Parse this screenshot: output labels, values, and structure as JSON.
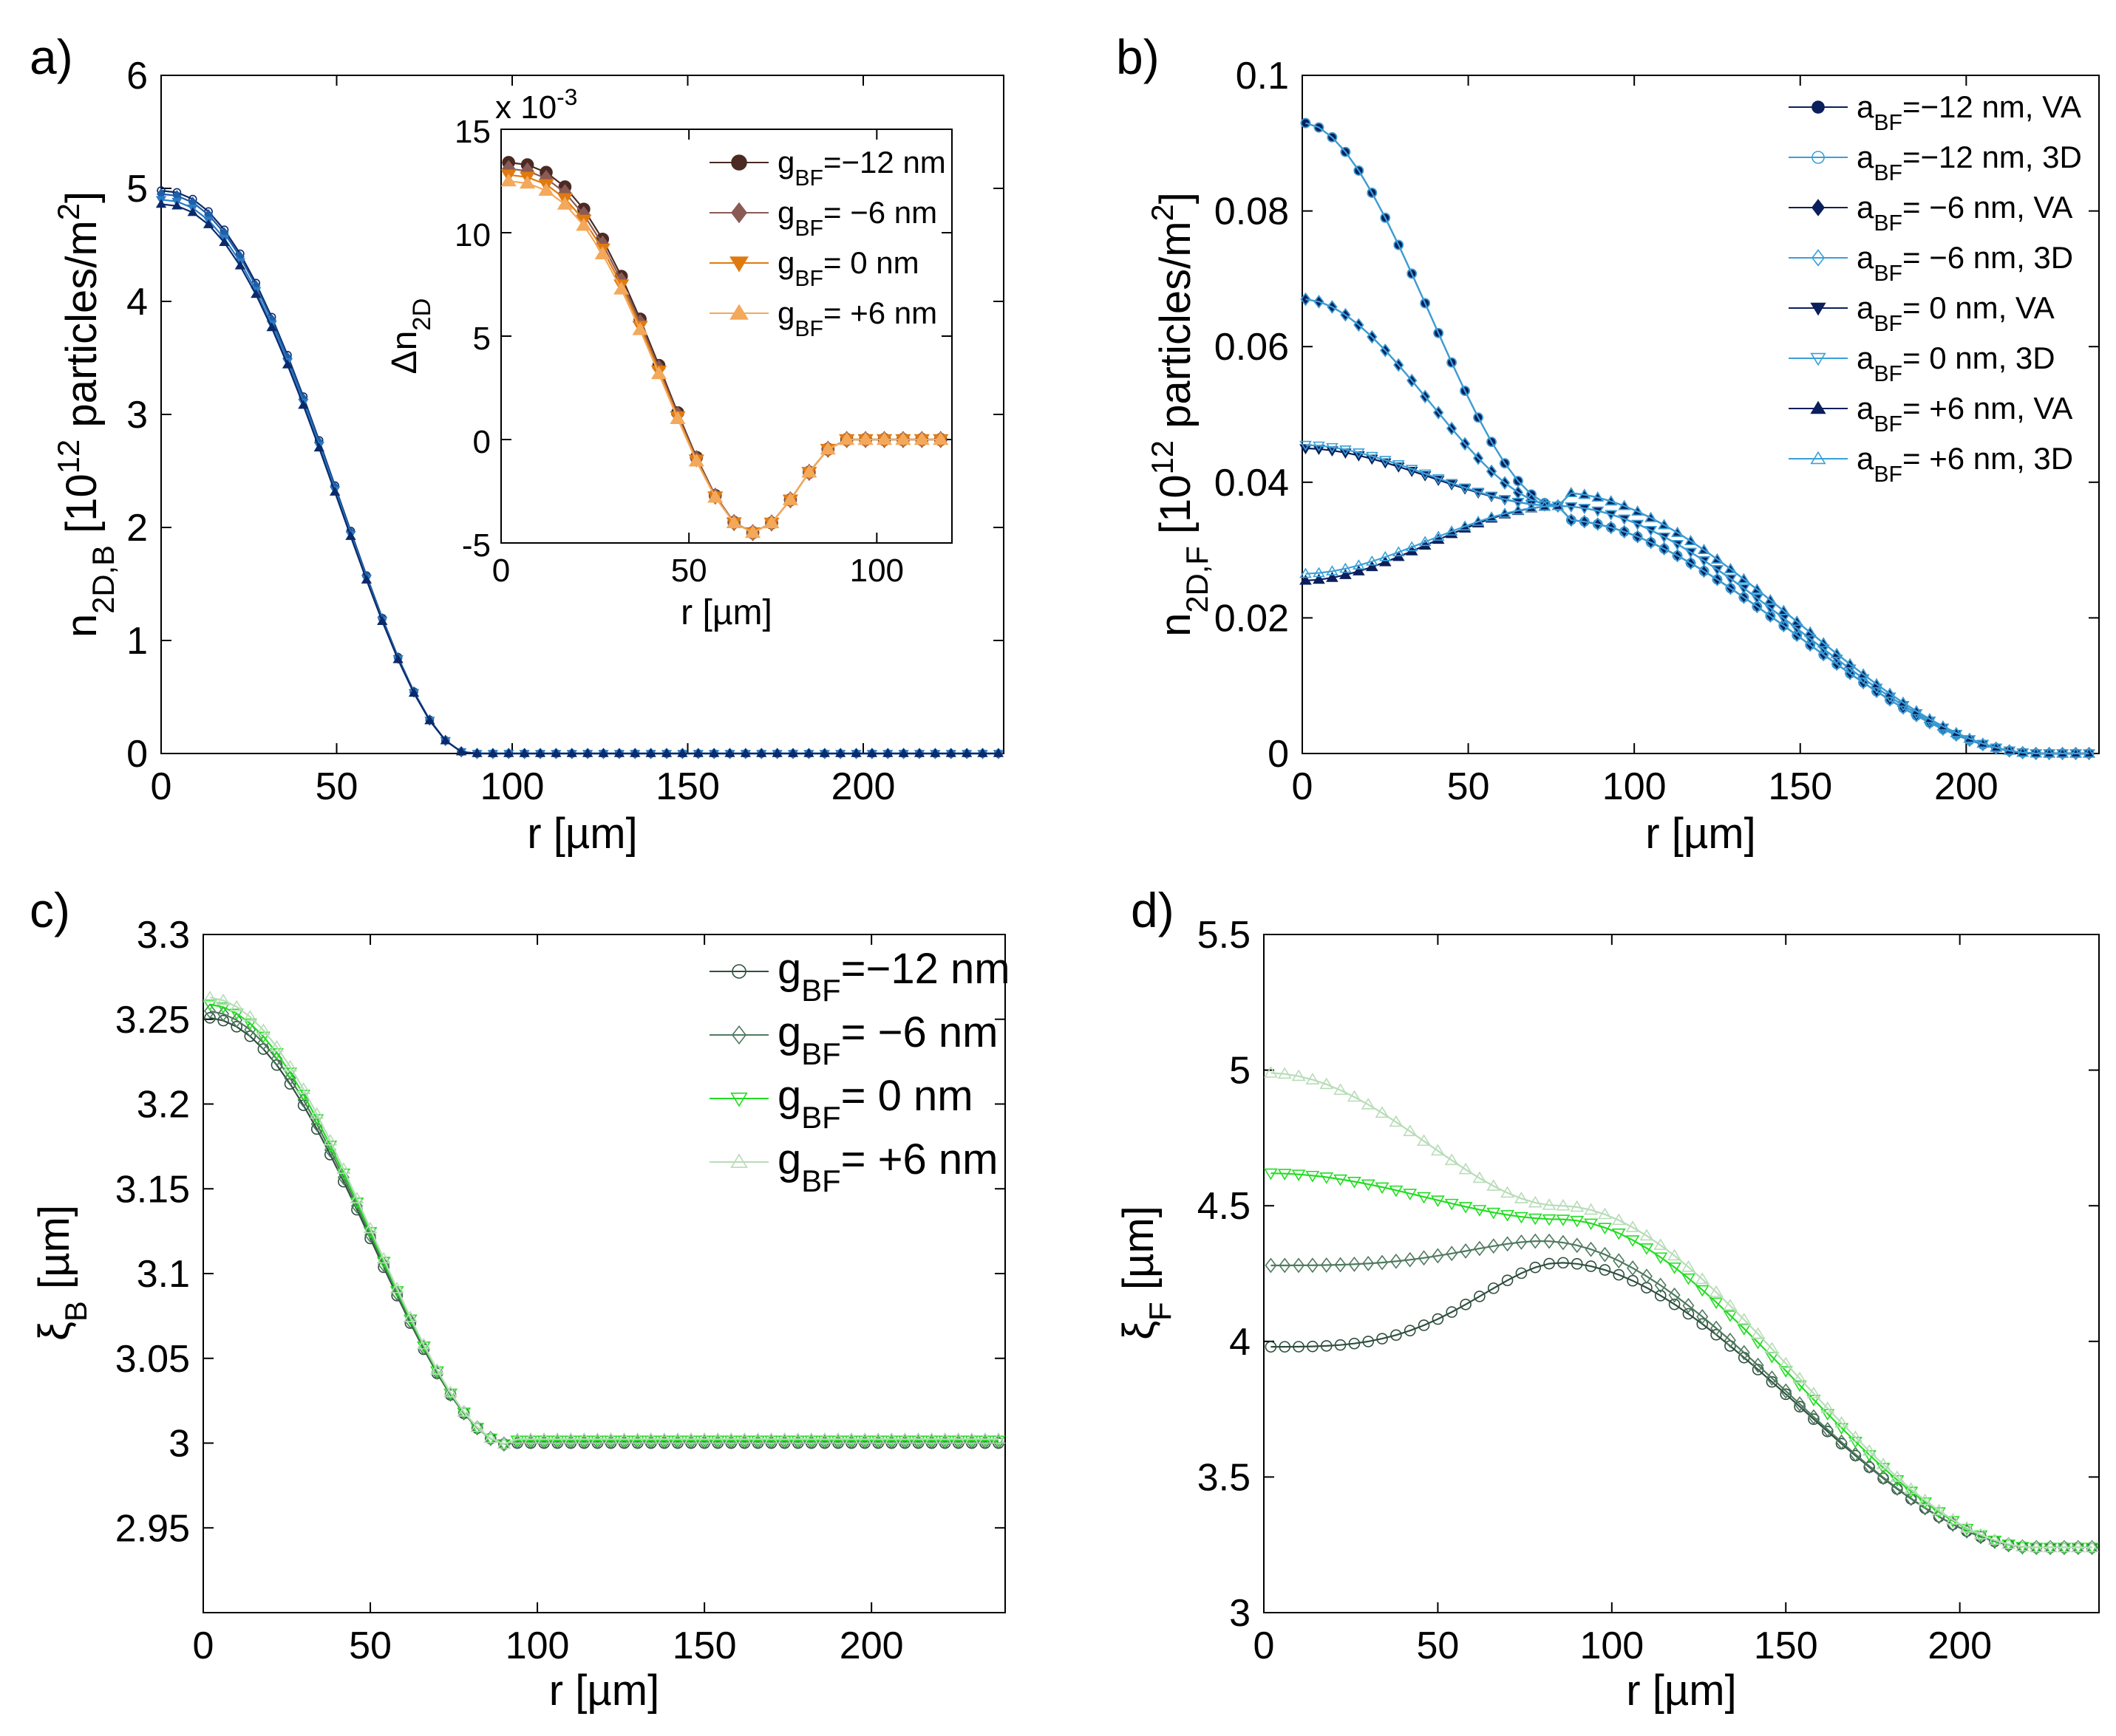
{
  "figure_panels": [
    "a)",
    "b)",
    "c)",
    "d)"
  ],
  "chart_data": [
    {
      "panel": "a)",
      "type": "line",
      "xlabel": "r [µm]",
      "ylabel": "n_{2D,B} [10^{12} particles/m^2]",
      "ylabel_parts": {
        "main": "n",
        "sub": "2D,B",
        "rest1": "[10",
        "sup": "12",
        "rest2": "particles/m",
        "sup2": "2",
        "rest3": "]"
      },
      "xlim": [
        0,
        240
      ],
      "ylim": [
        0,
        6
      ],
      "xticks": [
        0,
        50,
        100,
        150,
        200
      ],
      "yticks": [
        0,
        1,
        2,
        3,
        4,
        5,
        6
      ],
      "curve": {
        "kind": "gauss_step",
        "amp": [
          4.98,
          4.95,
          4.9,
          4.86
        ],
        "cutoff": 88
      },
      "series": [
        {
          "name": "a=-12 nm",
          "color": "#0a2a6b",
          "marker": "circle-open",
          "center": 4.98
        },
        {
          "name": "a=-6 nm",
          "color": "#1f5ea8",
          "marker": "diamond",
          "center": 4.95
        },
        {
          "name": "a=0 nm",
          "color": "#2b7bc4",
          "marker": "tri-down",
          "center": 4.9
        },
        {
          "name": "a=+6 nm",
          "color": "#0a2a6b",
          "marker": "tri-up",
          "center": 4.86
        }
      ],
      "inset": {
        "exponent_label": "x 10",
        "exponent_sup": "-3",
        "ylabel": "Δn",
        "ylabel_sub": "2D",
        "xlabel": "r [µm]",
        "xlim": [
          0,
          120
        ],
        "ylim": [
          -5,
          15
        ],
        "xticks": [
          0,
          50,
          100
        ],
        "yticks": [
          -5,
          0,
          5,
          10,
          15
        ],
        "series": [
          {
            "name_main": "g",
            "name_sub": "BF",
            "name_rest": "=−12 nm",
            "color": "#4a2a22",
            "marker": "circle",
            "center": 13.4
          },
          {
            "name_main": "g",
            "name_sub": "BF",
            "name_rest": "= −6 nm",
            "color": "#8a5a55",
            "marker": "diamond",
            "center": 13.1
          },
          {
            "name_main": "g",
            "name_sub": "BF",
            "name_rest": "=  0 nm",
            "color": "#e07a10",
            "marker": "tri-down",
            "center": 12.8
          },
          {
            "name_main": "g",
            "name_sub": "BF",
            "name_rest": "= +6 nm",
            "color": "#f4a85a",
            "marker": "tri-up",
            "center": 12.5
          }
        ]
      }
    },
    {
      "panel": "b)",
      "type": "line",
      "xlabel": "r [µm]",
      "ylabel_parts": {
        "main": "n",
        "sub": "2D,F",
        "rest1": "[10",
        "sup": "12",
        "rest2": "particles/m",
        "sup2": "2",
        "rest3": "]"
      },
      "xlim": [
        0,
        240
      ],
      "ylim": [
        0,
        0.1
      ],
      "xticks": [
        0,
        50,
        100,
        150,
        200
      ],
      "yticks": [
        0,
        0.02,
        0.04,
        0.06,
        0.08,
        0.1
      ],
      "ytick_labels": [
        "0",
        "0.02",
        "0.04",
        "0.06",
        "0.08",
        "0.1"
      ],
      "series": [
        {
          "name_main": "a",
          "name_sub": "BF",
          "name_rest": "=−12 nm, VA",
          "color": "#0a1f5c",
          "marker": "circle",
          "center": 0.093
        },
        {
          "name_main": "a",
          "name_sub": "BF",
          "name_rest": "=−12 nm, 3D",
          "color": "#3aa0d8",
          "marker": "circle-open",
          "center": 0.093
        },
        {
          "name_main": "a",
          "name_sub": "BF",
          "name_rest": "=  −6 nm, VA",
          "color": "#0a1f5c",
          "marker": "diamond",
          "center": 0.067
        },
        {
          "name_main": "a",
          "name_sub": "BF",
          "name_rest": "=  −6 nm, 3D",
          "color": "#3aa0d8",
          "marker": "diamond-open",
          "center": 0.067
        },
        {
          "name_main": "a",
          "name_sub": "BF",
          "name_rest": "=    0 nm, VA",
          "color": "#0a1f5c",
          "marker": "tri-down",
          "center": 0.045
        },
        {
          "name_main": "a",
          "name_sub": "BF",
          "name_rest": "=    0 nm, 3D",
          "color": "#3aa0d8",
          "marker": "tri-down-open",
          "center": 0.0455
        },
        {
          "name_main": "a",
          "name_sub": "BF",
          "name_rest": "= +6 nm, VA",
          "color": "#0a1f5c",
          "marker": "tri-up",
          "center": 0.0255
        },
        {
          "name_main": "a",
          "name_sub": "BF",
          "name_rest": "= +6 nm, 3D",
          "color": "#3aa0d8",
          "marker": "tri-up-open",
          "center": 0.0265
        }
      ],
      "crossing": {
        "r": 77,
        "value": 0.0365
      },
      "edge_r": 222
    },
    {
      "panel": "c)",
      "type": "line",
      "xlabel": "r [µm]",
      "ylabel_main": "ξ",
      "ylabel_sub": "B",
      "ylabel_rest": "[µm]",
      "xlim": [
        0,
        240
      ],
      "ylim": [
        2.9,
        3.3
      ],
      "xticks": [
        0,
        50,
        100,
        150,
        200
      ],
      "yticks": [
        2.95,
        3,
        3.05,
        3.1,
        3.15,
        3.2,
        3.25,
        3.3
      ],
      "ytick_labels": [
        "2.95",
        "3",
        "3.05",
        "3.1",
        "3.15",
        "3.2",
        "3.25",
        "3.3"
      ],
      "series": [
        {
          "name_main": "g",
          "name_sub": "BF",
          "name_rest": "=−12 nm",
          "color": "#2f4f3f",
          "marker": "circle-open",
          "center": 3.251
        },
        {
          "name_main": "g",
          "name_sub": "BF",
          "name_rest": "=  −6 nm",
          "color": "#4f7a5f",
          "marker": "diamond-open",
          "center": 3.255
        },
        {
          "name_main": "g",
          "name_sub": "BF",
          "name_rest": "=    0 nm",
          "color": "#22dd22",
          "marker": "tri-down-open",
          "center": 3.259
        },
        {
          "name_main": "g",
          "name_sub": "BF",
          "name_rest": "= +6 nm",
          "color": "#b8dcb8",
          "marker": "tri-up-open",
          "center": 3.263
        }
      ],
      "baseline": 3.0
    },
    {
      "panel": "d)",
      "type": "line",
      "xlabel": "r [µm]",
      "ylabel_main": "ξ",
      "ylabel_sub": "F",
      "ylabel_rest": "[µm]",
      "xlim": [
        0,
        240
      ],
      "ylim": [
        3,
        5.5
      ],
      "xticks": [
        0,
        50,
        100,
        150,
        200
      ],
      "yticks": [
        3,
        3.5,
        4,
        4.5,
        5,
        5.5
      ],
      "ytick_labels": [
        "3",
        "3.5",
        "4",
        "4.5",
        "5",
        "5.5"
      ],
      "series": [
        {
          "name": "g=-12 nm",
          "color": "#2f4f3f",
          "marker": "circle-open",
          "center": 3.98,
          "bump": 4.29,
          "bump_r": 85
        },
        {
          "name": "g=-6 nm",
          "color": "#4f7a5f",
          "marker": "diamond-open",
          "center": 4.28,
          "bump": 4.37,
          "bump_r": 80
        },
        {
          "name": "g=0 nm",
          "color": "#22dd22",
          "marker": "tri-down-open",
          "center": 4.62,
          "bump": 4.45,
          "bump_r": 85
        },
        {
          "name": "g=+6 nm",
          "color": "#b8dcb8",
          "marker": "tri-up-open",
          "center": 4.99,
          "bump": 4.5,
          "bump_r": 85
        }
      ],
      "edge": 3.24
    }
  ]
}
